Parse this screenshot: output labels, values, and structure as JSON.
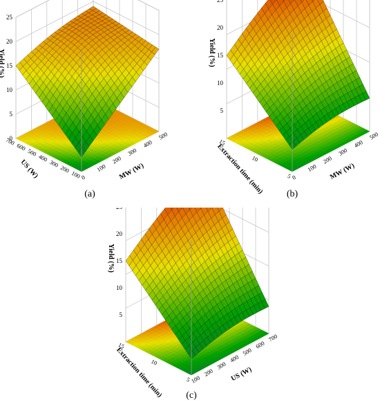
{
  "figure": {
    "captions": [
      "(a)",
      "(b)",
      "(c)"
    ]
  },
  "colors": {
    "high": "#cc0000",
    "mid": "#e8e000",
    "low": "#00a000",
    "base": "#0a6a3a",
    "grid": "#c8c8c8",
    "mesh": "#1a1a1a"
  },
  "chart_data": [
    {
      "type": "surface3d",
      "panel": "a",
      "zlabel": "Yield (%)",
      "xlabel": "MW (W)",
      "ylabel": "US (W)",
      "zlim": [
        0,
        25
      ],
      "z_ticks": [
        "0",
        "5",
        "10",
        "15",
        "20",
        "25"
      ],
      "x_ticks": [
        "0",
        "100",
        "200",
        "300",
        "400",
        "500"
      ],
      "y_ticks": [
        "100",
        "200",
        "300",
        "400",
        "500",
        "600",
        "700"
      ],
      "x_range": [
        0,
        500
      ],
      "y_range": [
        100,
        700
      ],
      "corner_yields": {
        "x_low_y_low": 3,
        "x_high_y_low": 17,
        "x_low_y_high": 15,
        "x_high_y_high": 19
      },
      "peak_yield": 20
    },
    {
      "type": "surface3d",
      "panel": "b",
      "zlabel": "Yield (%)",
      "xlabel": "MW (W)",
      "ylabel": "Extraction time (min)",
      "zlim": [
        0,
        25
      ],
      "z_ticks": [
        "5",
        "10",
        "15",
        "20",
        "25"
      ],
      "x_ticks": [
        "0",
        "100",
        "200",
        "300",
        "400",
        "500"
      ],
      "y_ticks": [
        "5",
        "10",
        "15"
      ],
      "x_range": [
        0,
        500
      ],
      "y_range": [
        5,
        15
      ],
      "corner_yields": {
        "x_low_y_low": 4,
        "x_high_y_low": 6,
        "x_low_y_high": 15,
        "x_high_y_high": 25
      },
      "peak_yield": 25
    },
    {
      "type": "surface3d",
      "panel": "c",
      "zlabel": "Yield (%)",
      "xlabel": "US (W)",
      "ylabel": "Extraction time (min)",
      "zlim": [
        0,
        25
      ],
      "z_ticks": [
        "5",
        "10",
        "15",
        "20",
        "25"
      ],
      "x_ticks": [
        "100",
        "200",
        "300",
        "400",
        "500",
        "600",
        "700"
      ],
      "y_ticks": [
        "5",
        "10",
        "15"
      ],
      "x_range": [
        100,
        700
      ],
      "y_range": [
        5,
        15
      ],
      "corner_yields": {
        "x_low_y_low": 3,
        "x_high_y_low": 5,
        "x_low_y_high": 15,
        "x_high_y_high": 25
      },
      "peak_yield": 25
    }
  ]
}
